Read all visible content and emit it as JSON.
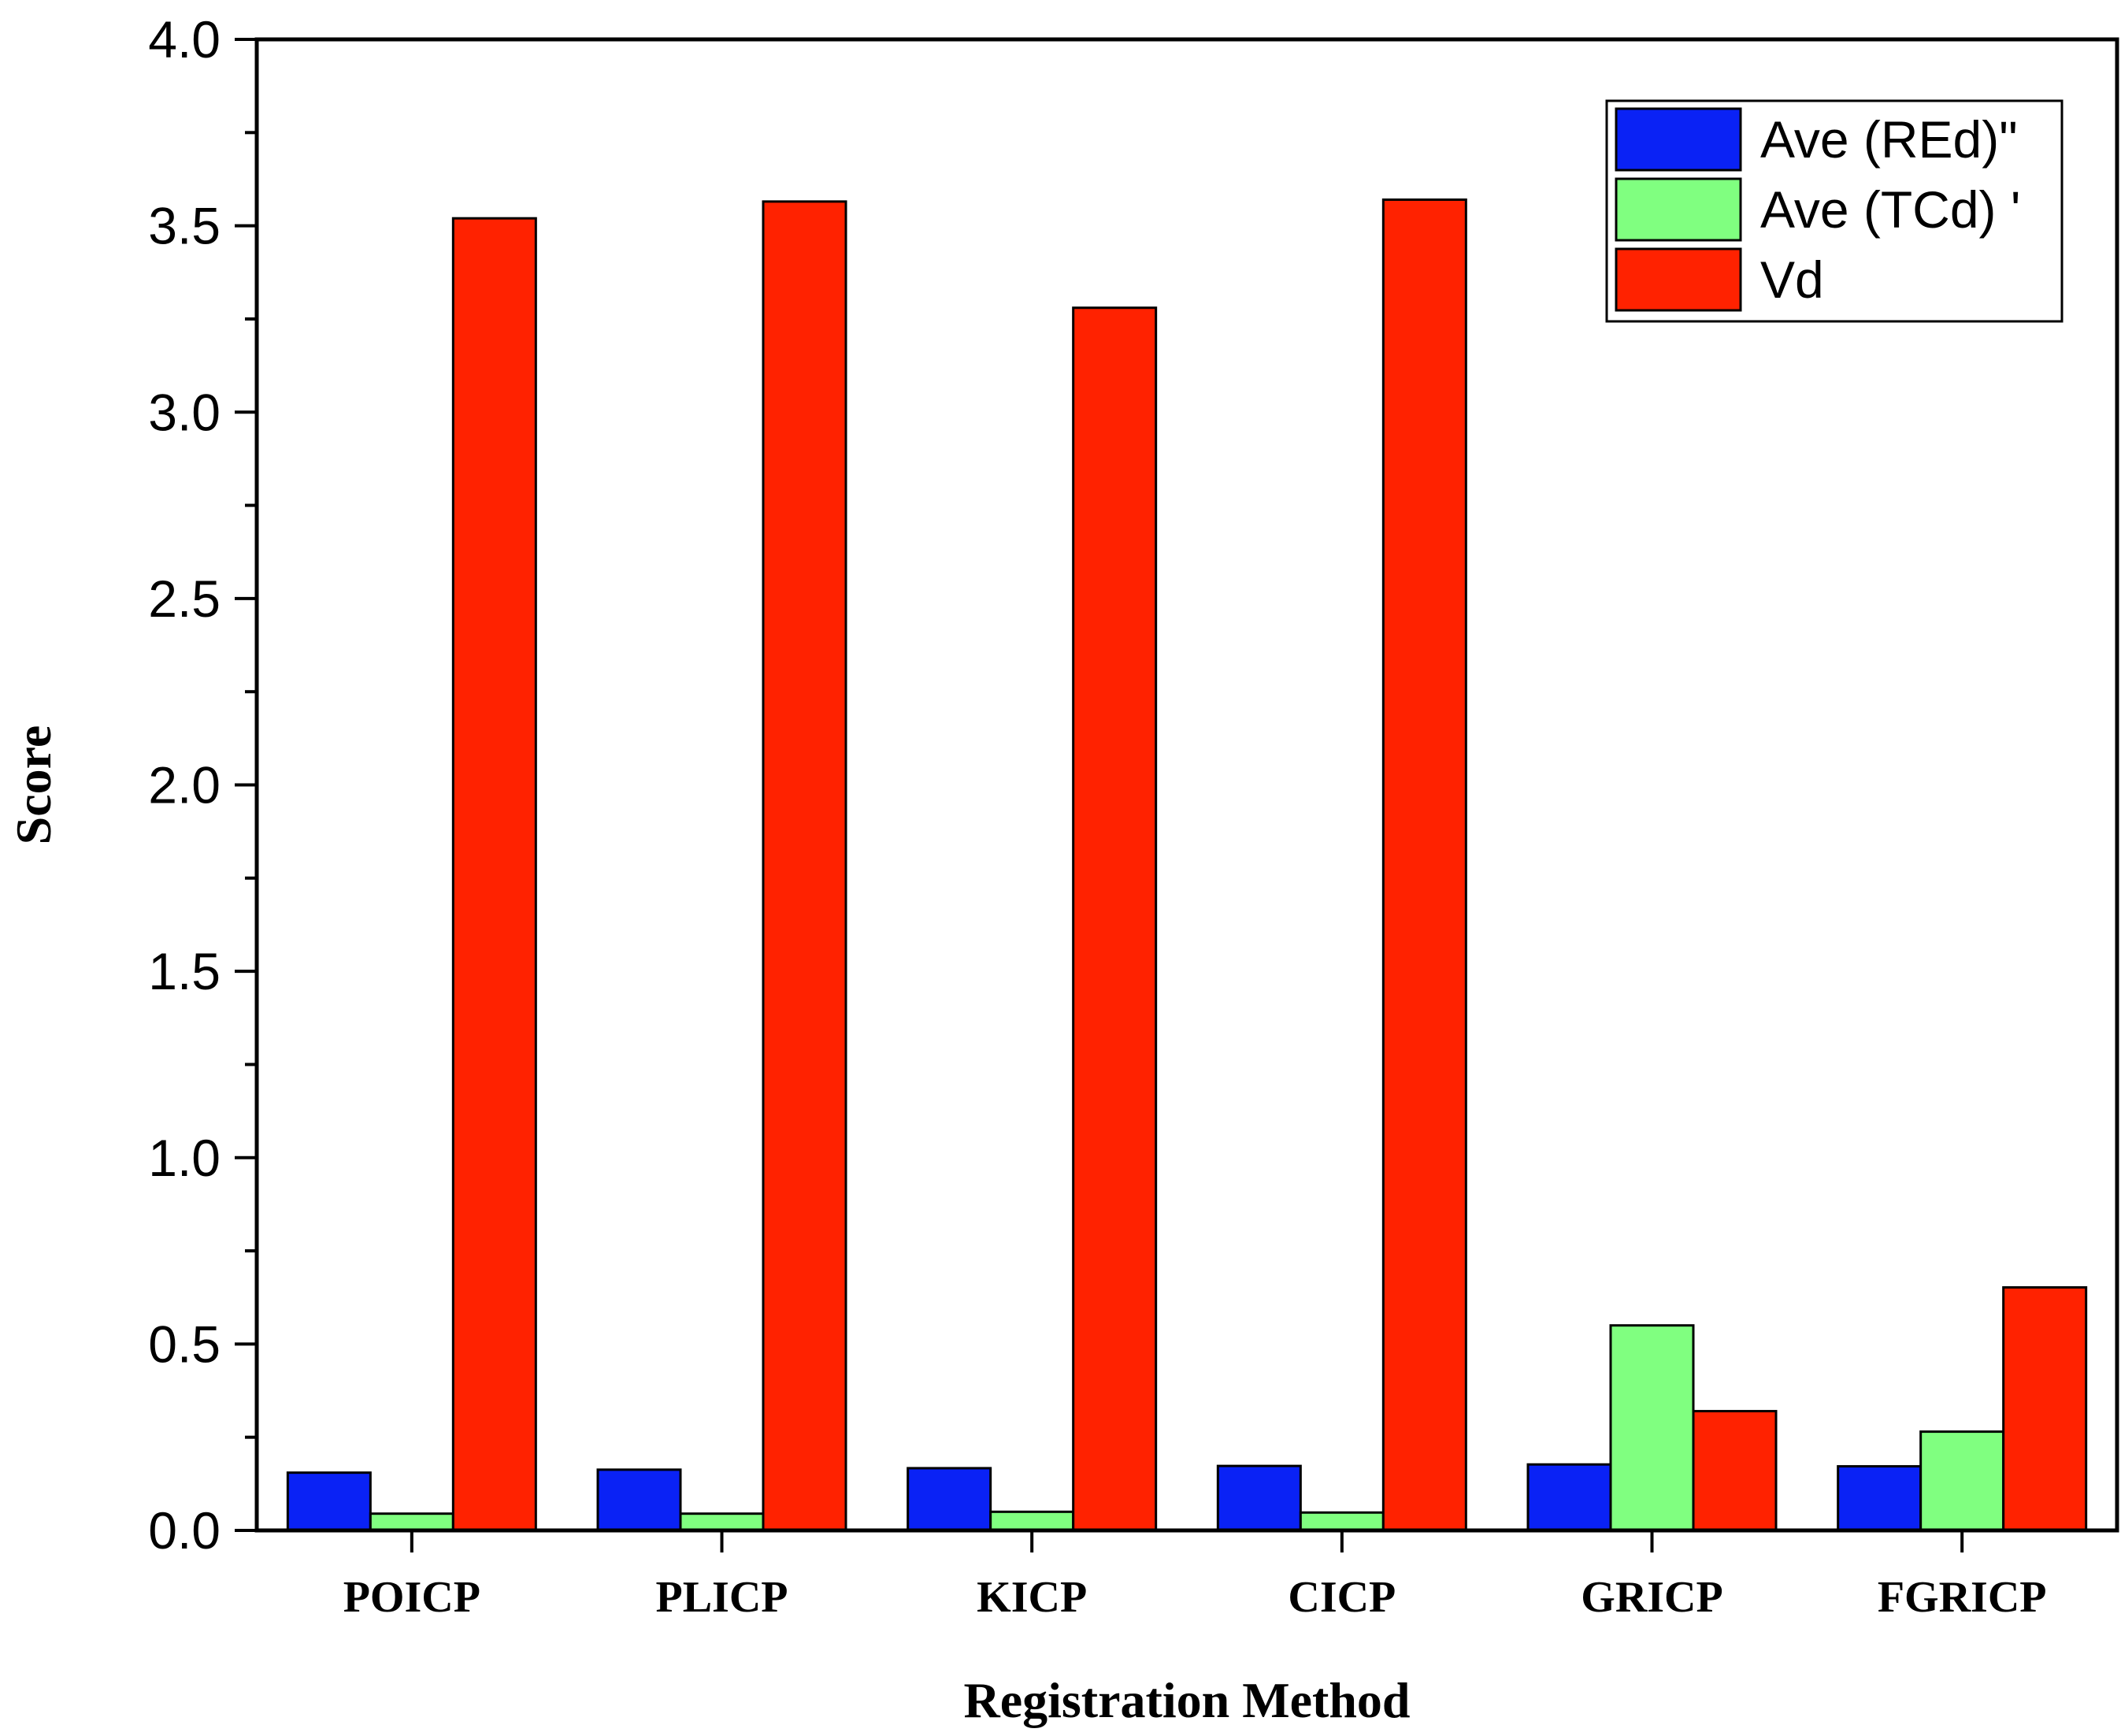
{
  "chart_data": {
    "type": "bar",
    "title": "",
    "xlabel": "Registration Method",
    "ylabel": "Score",
    "ylim": [
      0,
      4.0
    ],
    "y_ticks": [
      "0.0",
      "0.5",
      "1.0",
      "1.5",
      "2.0",
      "2.5",
      "3.0",
      "3.5",
      "4.0"
    ],
    "categories": [
      "POICP",
      "PLICP",
      "KICP",
      "CICP",
      "GRICP",
      "FGRICP"
    ],
    "series": [
      {
        "name": "Ave (REd)\"",
        "color": "#0a22f5",
        "values": [
          0.155,
          0.163,
          0.167,
          0.173,
          0.177,
          0.172
        ]
      },
      {
        "name": "Ave (TCd) '",
        "color": "#80ff80",
        "values": [
          0.045,
          0.045,
          0.05,
          0.048,
          0.55,
          0.265
        ]
      },
      {
        "name": "Vd",
        "color": "#ff2200",
        "values": [
          3.52,
          3.565,
          3.28,
          3.57,
          0.32,
          0.652
        ]
      }
    ],
    "legend_position": "top-right",
    "grid": false
  }
}
